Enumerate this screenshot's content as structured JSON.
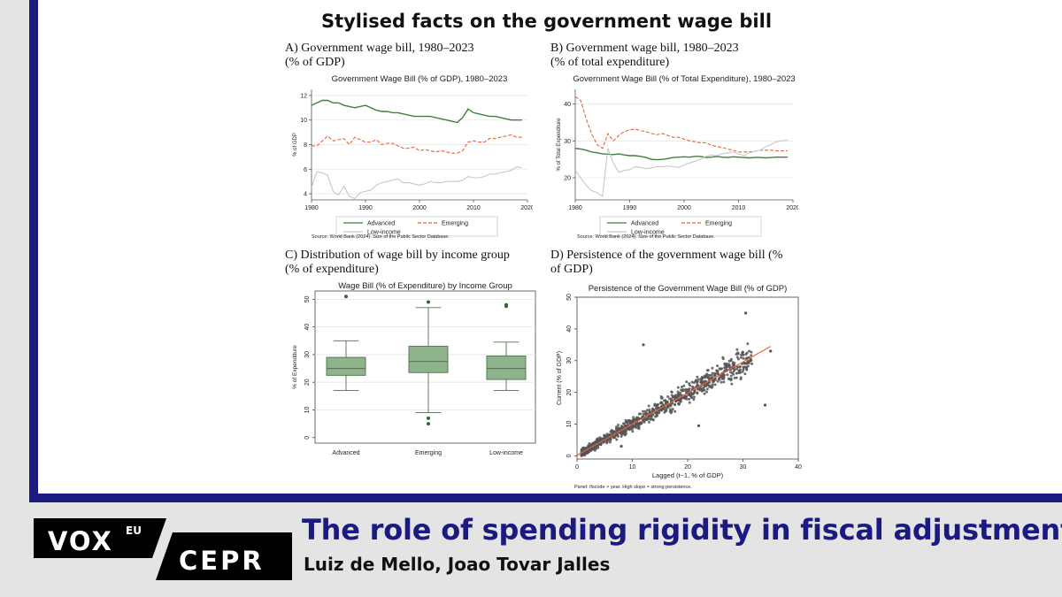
{
  "figure_title": "Stylised facts on the government wage bill",
  "panels": {
    "a": {
      "caption_line1": "A) Government wage bill, 1980–2023",
      "caption_line2": "(% of GDP)"
    },
    "b": {
      "caption_line1": "B) Government wage bill, 1980–2023",
      "caption_line2": "(% of total expenditure)"
    },
    "c": {
      "caption_line1": "C) Distribution of wage bill by income group",
      "caption_line2": "(% of expenditure)"
    },
    "d": {
      "caption_line1": "D) Persistence of the government wage bill (%",
      "caption_line2": "of GDP)"
    }
  },
  "footer": {
    "logo_vox": "VOX",
    "logo_eu": "EU",
    "logo_cepr": "CEPR",
    "title": "The role of spending rigidity in fiscal adjustment",
    "authors": "Luiz de Mello, Joao Tovar Jalles"
  },
  "colors": {
    "navy": "#1a1a80",
    "advanced": "#3f7f3f",
    "emerging": "#e8643c",
    "low_income": "#c8c8c8",
    "box_fill": "#8fb38a",
    "box_stroke": "#4f6f4b",
    "scatter_point": "#555555",
    "fit_line": "#e8643c"
  },
  "chart_data": [
    {
      "type": "line",
      "title": "Government Wage Bill (% of GDP), 1980–2023",
      "ylabel": "% of GDP",
      "xlabel": "",
      "xlim": [
        1980,
        2020
      ],
      "ylim": [
        3.5,
        12.5
      ],
      "xticks": [
        1980,
        1990,
        2000,
        2010,
        2020
      ],
      "yticks": [
        4,
        6,
        8,
        10,
        12
      ],
      "x": [
        1980,
        1981,
        1982,
        1983,
        1984,
        1985,
        1986,
        1987,
        1988,
        1989,
        1990,
        1991,
        1992,
        1993,
        1994,
        1995,
        1996,
        1997,
        1998,
        1999,
        2000,
        2001,
        2002,
        2003,
        2004,
        2005,
        2006,
        2007,
        2008,
        2009,
        2010,
        2011,
        2012,
        2013,
        2014,
        2015,
        2016,
        2017,
        2018,
        2019
      ],
      "series": [
        {
          "name": "Advanced",
          "style": "solid",
          "values": [
            11.2,
            11.4,
            11.6,
            11.6,
            11.4,
            11.4,
            11.2,
            11.1,
            11.0,
            11.1,
            11.2,
            11.0,
            10.8,
            10.7,
            10.7,
            10.6,
            10.6,
            10.5,
            10.4,
            10.3,
            10.3,
            10.3,
            10.3,
            10.2,
            10.1,
            10.0,
            9.9,
            9.8,
            10.2,
            10.9,
            10.6,
            10.5,
            10.4,
            10.3,
            10.3,
            10.2,
            10.1,
            10.0,
            10.0,
            10.0
          ]
        },
        {
          "name": "Emerging",
          "style": "dash",
          "values": [
            7.9,
            7.9,
            8.3,
            8.7,
            8.3,
            8.4,
            8.5,
            8.0,
            8.6,
            8.4,
            8.2,
            8.2,
            8.4,
            8.0,
            8.1,
            8.1,
            7.9,
            7.7,
            7.7,
            7.8,
            7.5,
            7.6,
            7.5,
            7.4,
            7.5,
            7.4,
            7.3,
            7.3,
            7.5,
            8.2,
            8.3,
            8.2,
            8.2,
            8.5,
            8.5,
            8.6,
            8.7,
            8.8,
            8.6,
            8.6
          ]
        },
        {
          "name": "Low-income",
          "style": "solid",
          "values": [
            4.5,
            5.8,
            5.7,
            5.5,
            4.2,
            3.9,
            4.6,
            3.8,
            3.6,
            4.1,
            4.2,
            4.3,
            4.7,
            4.9,
            5.0,
            5.1,
            5.2,
            4.9,
            4.9,
            4.8,
            4.7,
            4.8,
            5.0,
            4.9,
            4.9,
            5.0,
            5.0,
            5.0,
            5.1,
            5.4,
            5.3,
            5.3,
            5.4,
            5.6,
            5.6,
            5.7,
            5.8,
            5.9,
            6.2,
            6.1
          ]
        }
      ],
      "legend": "bottom",
      "note": "Source: World Bank (2024). Size of the Public Sector Database."
    },
    {
      "type": "line",
      "title": "Government Wage Bill (% of Total Expenditure), 1980–2023",
      "ylabel": "% of Total Expenditure",
      "xlabel": "",
      "xlim": [
        1980,
        2020
      ],
      "ylim": [
        14,
        44
      ],
      "xticks": [
        1980,
        1990,
        2000,
        2010,
        2020
      ],
      "yticks": [
        20,
        30,
        40
      ],
      "x": [
        1980,
        1981,
        1982,
        1983,
        1984,
        1985,
        1986,
        1987,
        1988,
        1989,
        1990,
        1991,
        1992,
        1993,
        1994,
        1995,
        1996,
        1997,
        1998,
        1999,
        2000,
        2001,
        2002,
        2003,
        2004,
        2005,
        2006,
        2007,
        2008,
        2009,
        2010,
        2011,
        2012,
        2013,
        2014,
        2015,
        2016,
        2017,
        2018,
        2019
      ],
      "series": [
        {
          "name": "Advanced",
          "style": "solid",
          "values": [
            28.0,
            27.8,
            27.5,
            27.0,
            26.8,
            26.5,
            26.4,
            26.3,
            26.5,
            26.2,
            26.0,
            26.0,
            25.8,
            25.5,
            25.0,
            24.9,
            25.0,
            25.2,
            25.5,
            25.6,
            25.7,
            25.6,
            25.8,
            25.8,
            25.5,
            25.6,
            25.8,
            25.6,
            25.5,
            25.7,
            25.6,
            25.5,
            25.4,
            25.5,
            25.5,
            25.4,
            25.5,
            25.6,
            25.6,
            25.6
          ]
        },
        {
          "name": "Emerging",
          "style": "dash",
          "values": [
            42.0,
            41.0,
            36.0,
            32.0,
            29.0,
            28.0,
            32.0,
            30.0,
            31.5,
            32.5,
            33.0,
            33.2,
            32.8,
            32.5,
            32.0,
            31.7,
            32.0,
            31.5,
            31.0,
            31.0,
            30.5,
            30.0,
            29.8,
            29.5,
            29.5,
            28.8,
            28.5,
            28.2,
            27.8,
            27.5,
            27.0,
            27.0,
            27.0,
            27.2,
            27.5,
            27.5,
            27.5,
            27.3,
            27.3,
            27.3
          ]
        },
        {
          "name": "Low-income",
          "style": "solid",
          "values": [
            22.0,
            20.0,
            18.0,
            16.5,
            16.0,
            15.0,
            28.0,
            24.0,
            21.5,
            22.0,
            22.2,
            23.0,
            22.8,
            22.5,
            22.7,
            23.0,
            23.0,
            23.2,
            23.0,
            22.8,
            23.5,
            24.0,
            24.5,
            25.0,
            25.8,
            26.2,
            26.0,
            26.5,
            26.8,
            27.0,
            26.5,
            26.0,
            26.8,
            27.2,
            27.5,
            28.5,
            29.0,
            29.8,
            30.0,
            30.2
          ]
        }
      ],
      "legend": "bottom",
      "note": "Source: World Bank (2024). Size of the Public Sector Database."
    },
    {
      "type": "box",
      "title": "Wage Bill (% of Expenditure) by Income Group",
      "ylabel": "% of Expenditure",
      "xlabel": "",
      "ylim": [
        -2,
        53
      ],
      "yticks": [
        0,
        10,
        20,
        30,
        40,
        50
      ],
      "categories": [
        "Advanced",
        "Emerging",
        "Low-income"
      ],
      "boxes": [
        {
          "q1": 22.5,
          "median": 25.0,
          "q3": 29.0,
          "whisker_low": 17.0,
          "whisker_high": 35.0,
          "outliers": [
            51.0
          ]
        },
        {
          "q1": 23.5,
          "median": 27.5,
          "q3": 33.0,
          "whisker_low": 9.0,
          "whisker_high": 47.0,
          "outliers": [
            49.0,
            7.0,
            5.0
          ]
        },
        {
          "q1": 21.0,
          "median": 25.0,
          "q3": 29.5,
          "whisker_low": 17.0,
          "whisker_high": 34.5,
          "outliers": [
            48.0,
            47.5
          ]
        }
      ]
    },
    {
      "type": "scatter",
      "title": "Persistence of the Government Wage Bill (% of GDP)",
      "xlabel": "Lagged (t−1, % of GDP)",
      "ylabel": "Current (% of GDP)",
      "xlim": [
        0,
        40
      ],
      "ylim": [
        -1,
        50
      ],
      "xticks": [
        0,
        10,
        20,
        30,
        40
      ],
      "yticks": [
        0,
        10,
        20,
        30,
        40,
        50
      ],
      "fit_line": {
        "slope": 0.98,
        "intercept": 0.2,
        "x_range": [
          0,
          35
        ]
      },
      "highlighted_points": [
        [
          30.5,
          45.0
        ],
        [
          12.0,
          35.0
        ],
        [
          34.0,
          16.0
        ],
        [
          22.0,
          9.5
        ],
        [
          8.0,
          3.0
        ],
        [
          35.0,
          33.0
        ]
      ],
      "note": "Panel: ifscode × year. High slope ≈ strong persistence."
    }
  ]
}
